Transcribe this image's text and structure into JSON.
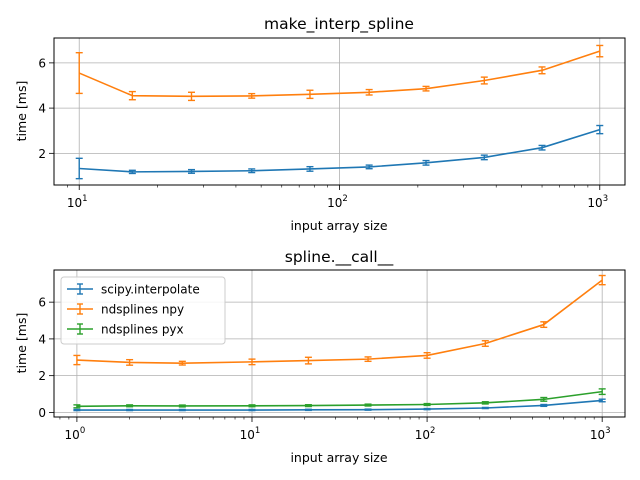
{
  "chart_data": [
    {
      "type": "line",
      "title": "make_interp_spline",
      "xlabel": "input array size",
      "ylabel": "time [ms]",
      "xscale": "log",
      "xlim": [
        8,
        1250
      ],
      "ylim": [
        0.6,
        7.1
      ],
      "xticks": [
        {
          "value": 10,
          "base": "10",
          "exp": "1"
        },
        {
          "value": 100,
          "base": "10",
          "exp": "2"
        },
        {
          "value": 1000,
          "base": "10",
          "exp": "3"
        }
      ],
      "yticks": [
        2,
        4,
        6
      ],
      "grid": true,
      "x": [
        10,
        16,
        27,
        46,
        77,
        130,
        215,
        360,
        600,
        1000
      ],
      "series": [
        {
          "name": "scipy.interpolate",
          "color": "#1f77b4",
          "values": [
            1.33,
            1.18,
            1.2,
            1.23,
            1.31,
            1.4,
            1.58,
            1.82,
            2.25,
            3.05
          ],
          "errors": [
            0.45,
            0.07,
            0.08,
            0.08,
            0.1,
            0.08,
            0.1,
            0.1,
            0.1,
            0.18
          ]
        },
        {
          "name": "ndsplines npy",
          "color": "#ff7f0e",
          "values": [
            5.55,
            4.55,
            4.52,
            4.54,
            4.61,
            4.7,
            4.86,
            5.22,
            5.67,
            6.52
          ],
          "errors": [
            0.9,
            0.18,
            0.18,
            0.1,
            0.18,
            0.12,
            0.1,
            0.15,
            0.15,
            0.25
          ]
        }
      ]
    },
    {
      "type": "line",
      "title": "spline.__call__",
      "xlabel": "input array size",
      "ylabel": "time [ms]",
      "xscale": "log",
      "xlim": [
        0.74,
        1350
      ],
      "ylim": [
        -0.25,
        7.75
      ],
      "xticks": [
        {
          "value": 1,
          "base": "10",
          "exp": "0"
        },
        {
          "value": 10,
          "base": "10",
          "exp": "1"
        },
        {
          "value": 100,
          "base": "10",
          "exp": "2"
        },
        {
          "value": 1000,
          "base": "10",
          "exp": "3"
        }
      ],
      "yticks": [
        0,
        2,
        4,
        6
      ],
      "grid": true,
      "legend": "top-left",
      "x": [
        1,
        2,
        4,
        10,
        21,
        46,
        100,
        215,
        464,
        1000
      ],
      "series": [
        {
          "name": "scipy.interpolate",
          "color": "#1f77b4",
          "values": [
            0.13,
            0.13,
            0.13,
            0.13,
            0.14,
            0.15,
            0.18,
            0.24,
            0.38,
            0.65
          ],
          "errors": [
            0.03,
            0.03,
            0.03,
            0.03,
            0.03,
            0.03,
            0.03,
            0.03,
            0.05,
            0.07
          ]
        },
        {
          "name": "ndsplines npy",
          "color": "#ff7f0e",
          "values": [
            2.85,
            2.72,
            2.68,
            2.75,
            2.82,
            2.9,
            3.1,
            3.75,
            4.78,
            7.2
          ],
          "errors": [
            0.25,
            0.15,
            0.1,
            0.15,
            0.18,
            0.12,
            0.15,
            0.15,
            0.15,
            0.25
          ]
        },
        {
          "name": "ndsplines pyx",
          "color": "#2ca02c",
          "values": [
            0.33,
            0.36,
            0.35,
            0.36,
            0.37,
            0.4,
            0.43,
            0.52,
            0.71,
            1.13
          ],
          "errors": [
            0.08,
            0.05,
            0.05,
            0.05,
            0.05,
            0.05,
            0.05,
            0.06,
            0.1,
            0.15
          ]
        }
      ]
    }
  ]
}
